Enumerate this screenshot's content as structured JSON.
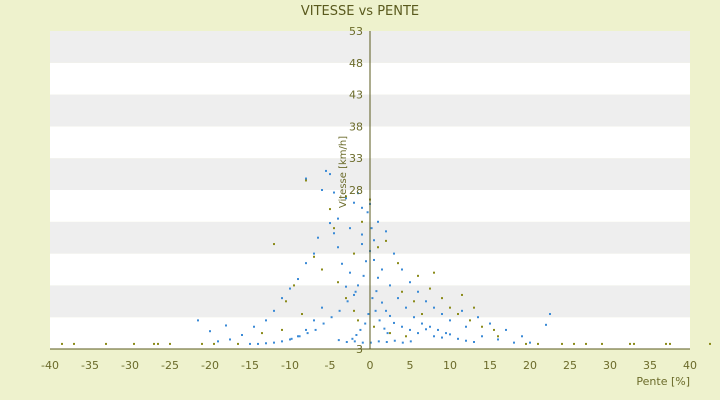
{
  "chart_data": {
    "type": "scatter",
    "title": "VITESSE vs PENTE",
    "xlabel": "Pente [%]",
    "ylabel": "Vitesse [km/h]",
    "xlim": [
      -40,
      40
    ],
    "ylim": [
      3,
      53
    ],
    "x_ticks": [
      -40,
      -35,
      -30,
      -25,
      -20,
      -15,
      -10,
      -5,
      0,
      5,
      10,
      15,
      20,
      25,
      30,
      35,
      40
    ],
    "y_ticks": [
      3,
      8,
      13,
      18,
      23,
      28,
      33,
      38,
      43,
      48,
      53
    ],
    "x_tick_labels": [
      "-40",
      "-35",
      "-30",
      "-25",
      "-20",
      "-15",
      "-10",
      "-5",
      "0",
      "5",
      "10",
      "15",
      "20",
      "25",
      "30",
      "35",
      "40"
    ],
    "y_tick_labels": [
      "3",
      "",
      "",
      "",
      "",
      "28",
      "33",
      "38",
      "43",
      "48",
      "53"
    ],
    "grid": "horizontal alternating bands",
    "legend": "none",
    "colors": {
      "background": "#eef2cd",
      "band_light": "#ffffff",
      "band_dark": "#eeeeee",
      "series_primary": "#3a8ad6",
      "series_secondary": "#8b8b1a",
      "axis": "#5a5a1e"
    },
    "series": [
      {
        "color": "#3a8ad6",
        "points": [
          [
            0.0,
            18.4
          ],
          [
            0.5,
            20.1
          ],
          [
            -0.5,
            16.8
          ],
          [
            1.0,
            14.2
          ],
          [
            -1.0,
            19.5
          ],
          [
            0.2,
            22.0
          ],
          [
            -0.3,
            24.5
          ],
          [
            0.8,
            12.1
          ],
          [
            1.5,
            10.3
          ],
          [
            -1.5,
            13.0
          ],
          [
            2.0,
            9.0
          ],
          [
            -2.0,
            11.5
          ],
          [
            2.5,
            8.2
          ],
          [
            3.0,
            7.1
          ],
          [
            -2.5,
            15.0
          ],
          [
            -3.0,
            12.8
          ],
          [
            -3.5,
            16.4
          ],
          [
            -4.0,
            19.0
          ],
          [
            -4.5,
            21.2
          ],
          [
            -5.0,
            22.8
          ],
          [
            4.0,
            6.5
          ],
          [
            5.0,
            6.0
          ],
          [
            6.0,
            5.5
          ],
          [
            7.0,
            6.1
          ],
          [
            8.0,
            5.0
          ],
          [
            9.0,
            4.8
          ],
          [
            10.0,
            5.3
          ],
          [
            11.0,
            4.6
          ],
          [
            12.0,
            4.3
          ],
          [
            13.0,
            4.1
          ],
          [
            -6.0,
            9.5
          ],
          [
            -7.0,
            7.5
          ],
          [
            -8.0,
            6.0
          ],
          [
            -9.0,
            5.0
          ],
          [
            -10.0,
            4.5
          ],
          [
            -11.0,
            4.2
          ],
          [
            -12.0,
            4.0
          ],
          [
            -13.0,
            3.9
          ],
          [
            -14.0,
            3.8
          ],
          [
            -15.0,
            3.8
          ],
          [
            -5.5,
            31.0
          ],
          [
            -5.0,
            30.5
          ],
          [
            -4.5,
            27.6
          ],
          [
            -8.0,
            29.8
          ],
          [
            -6.0,
            28.0
          ],
          [
            -3.0,
            26.7
          ],
          [
            -2.0,
            26.0
          ],
          [
            -1.5,
            27.5
          ],
          [
            -1.0,
            25.2
          ],
          [
            0.0,
            25.8
          ],
          [
            1.0,
            23.0
          ],
          [
            2.0,
            21.5
          ],
          [
            3.0,
            18.0
          ],
          [
            4.0,
            15.5
          ],
          [
            5.0,
            13.5
          ],
          [
            6.0,
            12.0
          ],
          [
            7.0,
            10.5
          ],
          [
            8.0,
            9.5
          ],
          [
            9.0,
            8.5
          ],
          [
            10.0,
            7.5
          ],
          [
            12.0,
            6.5
          ],
          [
            14.0,
            5.0
          ],
          [
            16.0,
            4.5
          ],
          [
            18.0,
            4.0
          ],
          [
            20.0,
            4.0
          ],
          [
            22.5,
            8.5
          ],
          [
            22.0,
            6.8
          ],
          [
            -18.0,
            6.7
          ],
          [
            -20.0,
            5.8
          ],
          [
            -21.5,
            7.5
          ],
          [
            -12.0,
            9.0
          ],
          [
            -11.0,
            11.0
          ],
          [
            -10.0,
            12.5
          ],
          [
            -9.0,
            14.0
          ],
          [
            -8.0,
            16.5
          ],
          [
            -7.0,
            18.0
          ],
          [
            -6.5,
            20.5
          ],
          [
            -4.0,
            23.5
          ],
          [
            -2.5,
            22.0
          ],
          [
            -1.0,
            21.0
          ],
          [
            0.5,
            17.0
          ],
          [
            1.5,
            15.5
          ],
          [
            2.5,
            13.0
          ],
          [
            3.5,
            11.0
          ],
          [
            4.5,
            9.5
          ],
          [
            5.5,
            8.0
          ],
          [
            6.5,
            7.0
          ],
          [
            7.5,
            6.5
          ],
          [
            8.5,
            6.0
          ],
          [
            9.5,
            5.5
          ],
          [
            -0.8,
            14.5
          ],
          [
            -1.8,
            12.0
          ],
          [
            -2.8,
            10.5
          ],
          [
            -3.8,
            9.0
          ],
          [
            -4.8,
            8.0
          ],
          [
            -5.8,
            7.0
          ],
          [
            -6.8,
            6.0
          ],
          [
            -7.8,
            5.5
          ],
          [
            -8.8,
            5.0
          ],
          [
            -9.8,
            4.6
          ],
          [
            0.3,
            11.0
          ],
          [
            0.7,
            9.0
          ],
          [
            1.2,
            7.5
          ],
          [
            1.8,
            6.2
          ],
          [
            2.2,
            5.5
          ],
          [
            -0.2,
            8.5
          ],
          [
            -0.6,
            7.0
          ],
          [
            -1.2,
            6.0
          ],
          [
            -1.7,
            5.2
          ],
          [
            -2.2,
            4.6
          ],
          [
            15.0,
            7.0
          ],
          [
            13.5,
            8.0
          ],
          [
            11.5,
            9.0
          ],
          [
            17.0,
            6.0
          ],
          [
            19.0,
            5.0
          ],
          [
            -16.0,
            5.2
          ],
          [
            -14.5,
            6.5
          ],
          [
            -13.0,
            7.5
          ],
          [
            -17.5,
            4.5
          ],
          [
            -19.0,
            4.2
          ],
          [
            0.1,
            4.0
          ],
          [
            1.1,
            4.2
          ],
          [
            2.1,
            4.1
          ],
          [
            3.1,
            4.3
          ],
          [
            -0.9,
            4.0
          ],
          [
            -1.9,
            4.2
          ],
          [
            -2.9,
            4.1
          ],
          [
            -3.9,
            4.4
          ],
          [
            4.1,
            4.0
          ],
          [
            5.1,
            4.2
          ]
        ]
      },
      {
        "color": "#8b8b1a",
        "points": [
          [
            -38.5,
            3.8
          ],
          [
            -37.0,
            3.8
          ],
          [
            -33.0,
            3.8
          ],
          [
            -29.5,
            3.8
          ],
          [
            -27.0,
            3.8
          ],
          [
            -26.5,
            3.8
          ],
          [
            -25.0,
            3.8
          ],
          [
            -21.0,
            3.8
          ],
          [
            -19.5,
            3.8
          ],
          [
            -16.5,
            3.8
          ],
          [
            19.5,
            3.8
          ],
          [
            21.0,
            3.8
          ],
          [
            24.0,
            3.8
          ],
          [
            25.5,
            3.8
          ],
          [
            27.0,
            3.8
          ],
          [
            29.0,
            3.8
          ],
          [
            32.5,
            3.8
          ],
          [
            33.0,
            3.8
          ],
          [
            37.0,
            3.8
          ],
          [
            37.5,
            3.8
          ],
          [
            42.5,
            3.8
          ],
          [
            -8.0,
            29.5
          ],
          [
            -3.0,
            27.0
          ],
          [
            -12.0,
            19.5
          ],
          [
            -5.0,
            25.0
          ],
          [
            -4.5,
            22.0
          ],
          [
            -7.0,
            17.5
          ],
          [
            -9.5,
            13.0
          ],
          [
            -10.5,
            10.5
          ],
          [
            -2.0,
            18.0
          ],
          [
            2.0,
            20.0
          ],
          [
            3.5,
            16.5
          ],
          [
            6.0,
            14.5
          ],
          [
            7.5,
            12.5
          ],
          [
            8.0,
            15.0
          ],
          [
            9.0,
            11.0
          ],
          [
            10.0,
            9.5
          ],
          [
            11.0,
            8.5
          ],
          [
            12.5,
            7.5
          ],
          [
            14.0,
            6.5
          ],
          [
            15.5,
            6.0
          ],
          [
            -1.0,
            23.0
          ],
          [
            1.0,
            19.0
          ],
          [
            4.0,
            12.0
          ],
          [
            5.5,
            10.5
          ],
          [
            6.5,
            8.5
          ],
          [
            -6.0,
            15.5
          ],
          [
            -4.0,
            13.5
          ],
          [
            -3.0,
            11.0
          ],
          [
            -2.0,
            9.0
          ],
          [
            -1.5,
            7.5
          ],
          [
            0.5,
            6.5
          ],
          [
            2.5,
            5.5
          ],
          [
            4.5,
            5.0
          ],
          [
            -8.5,
            8.5
          ],
          [
            -11.0,
            6.0
          ],
          [
            -13.5,
            5.5
          ],
          [
            16.0,
            5.0
          ],
          [
            13.0,
            9.5
          ],
          [
            11.5,
            11.5
          ],
          [
            0.0,
            26.5
          ]
        ]
      }
    ]
  }
}
